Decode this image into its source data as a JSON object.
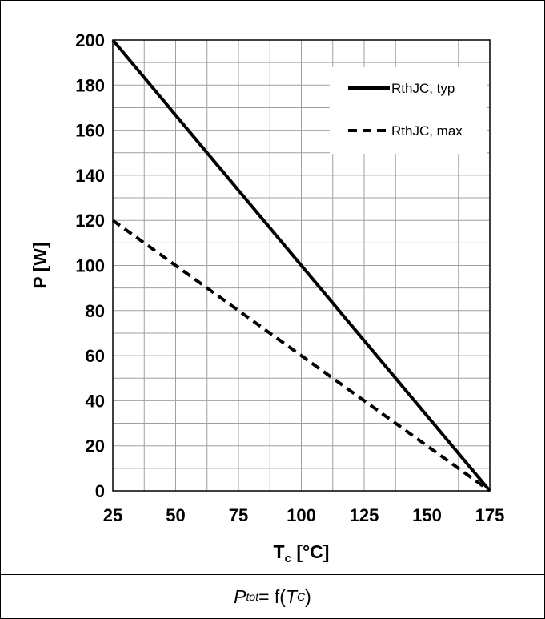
{
  "chart_data": {
    "type": "line",
    "xlabel": "T",
    "xlabel_sub": "c",
    "xlabel_unit": " [°C]",
    "ylabel": "P [W]",
    "xlim": [
      25,
      175
    ],
    "ylim": [
      0,
      200
    ],
    "x_ticks": [
      25,
      50,
      75,
      100,
      125,
      150,
      175
    ],
    "y_ticks": [
      0,
      20,
      40,
      60,
      80,
      100,
      120,
      140,
      160,
      180,
      200
    ],
    "x_minor_step": 12.5,
    "y_minor_step": 10,
    "grid": true,
    "legend_position": "top-right",
    "series": [
      {
        "name": "RthJC, typ",
        "style": "solid",
        "x": [
          25,
          175
        ],
        "y": [
          200,
          0
        ]
      },
      {
        "name": "RthJC, max",
        "style": "dashed",
        "x": [
          25,
          175
        ],
        "y": [
          120,
          0
        ]
      }
    ]
  },
  "caption": {
    "p": "P",
    "p_sub": "tot",
    "eq": " = f(",
    "t": "T",
    "t_sub": "C",
    "close": ")"
  }
}
